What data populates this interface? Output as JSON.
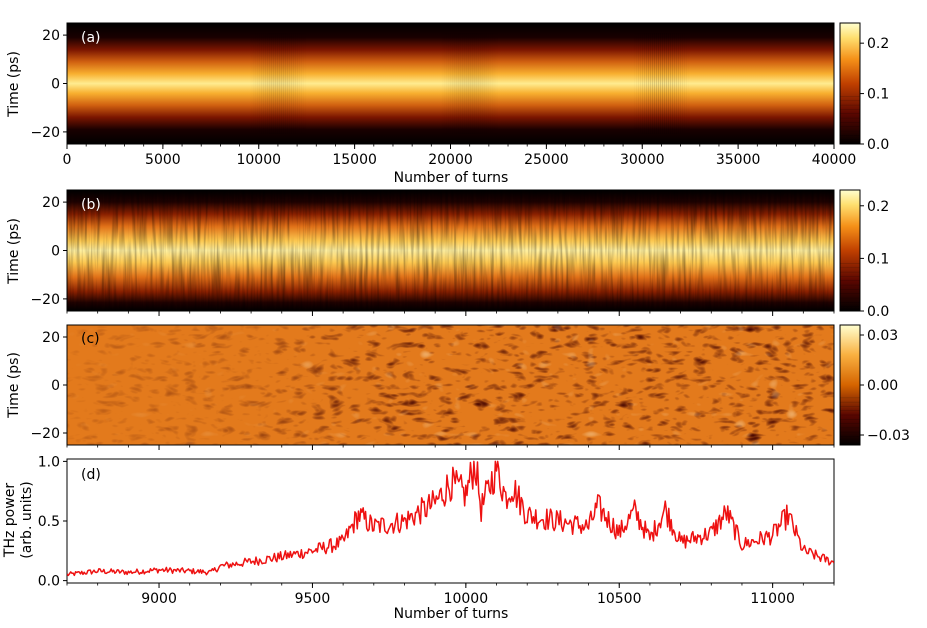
{
  "chart_data": [
    {
      "type": "heatmap",
      "panel_label": "(a)",
      "xlabel": "Number of turns",
      "ylabel": "Time (ps)",
      "xlim": [
        0,
        40000
      ],
      "ylim": [
        -25,
        25
      ],
      "xticks": [
        0,
        5000,
        10000,
        15000,
        20000,
        25000,
        30000,
        35000,
        40000
      ],
      "xtick_labels": [
        "0",
        "5000",
        "10000",
        "15000",
        "20000",
        "25000",
        "30000",
        "35000",
        "40000"
      ],
      "yticks": [
        -20,
        0,
        20
      ],
      "ytick_labels": [
        "−20",
        "0",
        "20"
      ],
      "colormap": "afmhot",
      "colorbar": {
        "range": [
          0.0,
          0.24
        ],
        "ticks": [
          0.0,
          0.1,
          0.2
        ],
        "tick_labels": [
          "0.0",
          "0.1",
          "0.2"
        ]
      },
      "description_values": {
        "center_peak": 0.23,
        "bunch_half_width_ps": 12,
        "microbunching_bursts_turns": [
          [
            9500,
            12500
          ],
          [
            19500,
            22500
          ],
          [
            29500,
            32500
          ]
        ]
      }
    },
    {
      "type": "heatmap",
      "panel_label": "(b)",
      "xlabel": "",
      "ylabel": "Time (ps)",
      "xlim": [
        8700,
        11200
      ],
      "ylim": [
        -25,
        25
      ],
      "yticks": [
        -20,
        0,
        20
      ],
      "ytick_labels": [
        "−20",
        "0",
        "20"
      ],
      "colormap": "afmhot",
      "colorbar": {
        "range": [
          0.0,
          0.23
        ],
        "ticks": [
          0.0,
          0.1,
          0.2
        ],
        "tick_labels": [
          "0.0",
          "0.1",
          "0.2"
        ]
      }
    },
    {
      "type": "heatmap",
      "panel_label": "(c)",
      "xlabel": "",
      "ylabel": "Time (ps)",
      "xlim": [
        8700,
        11200
      ],
      "ylim": [
        -25,
        25
      ],
      "yticks": [
        -20,
        0,
        20
      ],
      "ytick_labels": [
        "−20",
        "0",
        "20"
      ],
      "colormap": "afmhot",
      "colorbar": {
        "range": [
          -0.036,
          0.036
        ],
        "ticks": [
          -0.03,
          0.0,
          0.03
        ],
        "tick_labels": [
          "−0.03",
          "0.00",
          "0.03"
        ]
      }
    },
    {
      "type": "line",
      "panel_label": "(d)",
      "xlabel": "Number of turns",
      "ylabel": "THz power",
      "ylabel2": "(arb. units)",
      "xlim": [
        8700,
        11200
      ],
      "ylim": [
        -0.02,
        1.02
      ],
      "xticks": [
        9000,
        9500,
        10000,
        10500,
        11000
      ],
      "xtick_labels": [
        "9000",
        "9500",
        "10000",
        "10500",
        "11000"
      ],
      "yticks": [
        0.0,
        0.5,
        1.0
      ],
      "ytick_labels": [
        "0.0",
        "0.5",
        "1.0"
      ],
      "color": "#ee1111",
      "series": [
        {
          "name": "THz power",
          "x": [
            8700,
            8800,
            8900,
            9000,
            9100,
            9170,
            9200,
            9300,
            9400,
            9500,
            9600,
            9650,
            9700,
            9800,
            9900,
            9950,
            10000,
            10030,
            10050,
            10100,
            10130,
            10150,
            10200,
            10300,
            10400,
            10430,
            10500,
            10550,
            10600,
            10650,
            10700,
            10800,
            10850,
            10900,
            11000,
            11050,
            11100,
            11200
          ],
          "values": [
            0.05,
            0.08,
            0.07,
            0.09,
            0.08,
            0.07,
            0.12,
            0.16,
            0.2,
            0.25,
            0.32,
            0.55,
            0.45,
            0.5,
            0.65,
            0.82,
            0.72,
            1.0,
            0.6,
            0.95,
            0.7,
            0.8,
            0.55,
            0.5,
            0.45,
            0.62,
            0.4,
            0.58,
            0.35,
            0.6,
            0.32,
            0.4,
            0.57,
            0.3,
            0.38,
            0.55,
            0.25,
            0.15
          ]
        }
      ]
    }
  ]
}
